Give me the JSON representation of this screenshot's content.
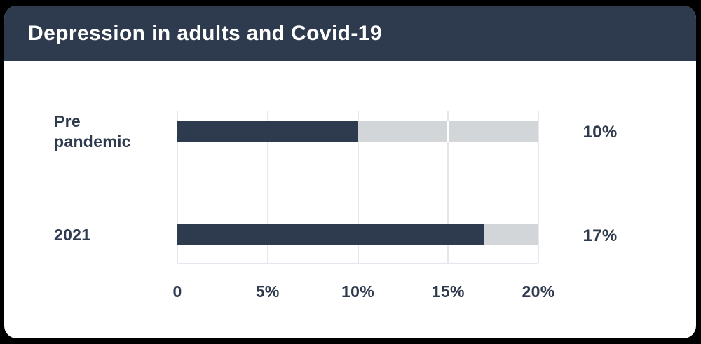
{
  "page": {
    "background": "#000000"
  },
  "card": {
    "background": "#ffffff"
  },
  "header": {
    "title": "Depression in adults and Covid-19",
    "background": "#2e3a4d",
    "text_color": "#ffffff"
  },
  "chart_data": {
    "type": "bar",
    "orientation": "horizontal",
    "title": "Depression in adults and Covid-19",
    "categories": [
      "Pre pandemic",
      "2021"
    ],
    "values": [
      10,
      17
    ],
    "value_labels": [
      "10%",
      "17%"
    ],
    "x_ticks": [
      {
        "value": 0,
        "label": "0"
      },
      {
        "value": 5,
        "label": "5%"
      },
      {
        "value": 10,
        "label": "10%"
      },
      {
        "value": 15,
        "label": "15%"
      },
      {
        "value": 20,
        "label": "20%"
      }
    ],
    "xlim": [
      0,
      20
    ],
    "grid": true,
    "legend_position": "none",
    "bar_color": "#2e3a4d",
    "track_color": "#d2d6d9",
    "gridline_color": "#e6e6ef",
    "label_color": "#2e3a4d"
  }
}
